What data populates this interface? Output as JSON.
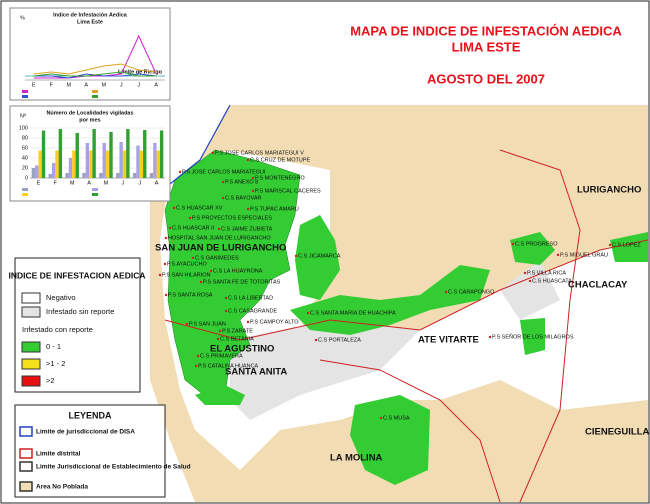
{
  "header": {
    "title_line1": "MAPA DE INDICE DE INFESTACIÓN AEDICA",
    "title_line2": "LIMA ESTE",
    "date": "AGOSTO DEL 2007"
  },
  "insets": [
    {
      "type": "line",
      "title_line1": "Indice de Infestación Aedica",
      "title_line2": "Lima Este",
      "y_label": "%",
      "annotation": "Limite de Riesgo",
      "categories": [
        "E",
        "F",
        "M",
        "A",
        "M",
        "J",
        "J",
        "A"
      ],
      "ylim": [
        0,
        25
      ],
      "series": [
        {
          "color": "#d020d0",
          "values": [
            1,
            1,
            1,
            2,
            2,
            3,
            22,
            3
          ]
        },
        {
          "color": "#e0a020",
          "values": [
            3,
            4,
            3,
            5,
            7,
            8,
            5,
            4
          ]
        },
        {
          "color": "#3050d0",
          "values": [
            2,
            2,
            1,
            3,
            2,
            2,
            3,
            2
          ]
        },
        {
          "color": "#30a030",
          "values": [
            2,
            3,
            2,
            2,
            3,
            4,
            2,
            2
          ]
        }
      ],
      "risk_level": 2
    },
    {
      "type": "bar",
      "title_line1": "Número de Localidades vigiladas",
      "title_line2": "por mes",
      "y_label": "Nº",
      "categories": [
        "E",
        "F",
        "M",
        "A",
        "M",
        "J",
        "J",
        "A"
      ],
      "ylim": [
        0,
        100
      ],
      "yticks": [
        0,
        20,
        40,
        60,
        80,
        100
      ],
      "series": [
        {
          "color": "#9aa0c0",
          "values": [
            20,
            8,
            10,
            10,
            10,
            10,
            10,
            10
          ]
        },
        {
          "color": "#a9a0e8",
          "values": [
            25,
            30,
            40,
            70,
            70,
            72,
            65,
            70
          ]
        },
        {
          "color": "#f5d020",
          "values": [
            55,
            55,
            55,
            55,
            55,
            55,
            55,
            55
          ]
        },
        {
          "color": "#30a030",
          "values": [
            95,
            98,
            90,
            98,
            92,
            98,
            96,
            95
          ]
        }
      ]
    }
  ],
  "districts": [
    "SAN JUAN DE LURIGANCHO",
    "EL AGUSTINO",
    "SANTA ANITA",
    "ATE VITARTE",
    "LA MOLINA",
    "LURIGANCHO",
    "CHACLACAY",
    "CIENEGUILLA"
  ],
  "health_centers": [
    "P.S JOSE CARLOS MARIATEGUI V",
    "C.S CRUZ DE MOTUPE",
    "P.S JOSE CARLOS MARIATEGUI",
    "P.S MONTENEGRO",
    "P.S ANEXO 8",
    "P.S MARISCAL CACERES",
    "C.S BAYOVAR",
    "C.S HUASCAR XV",
    "P.S TUPAC AMARU",
    "P.S PROYECTOS ESPECIALES",
    "C.S HUASCAR II",
    "C.S JAIME ZUBIETA",
    "HOSPITAL SAN JUAN DE LURIGANCHO",
    "C.S GANIMEDES",
    "P.S AYACUCHO",
    "C.S LA HUAYRONA",
    "P.S SAN HILARION",
    "P.S SANTA FE DE TOTORITAS",
    "P.S SANTA ROSA",
    "C.S LA LIBERTAD",
    "C.S CASAGRANDE",
    "P.S SAN JUAN",
    "P.S CAMPOY ALTO",
    "P.S ZARATE",
    "C.S BETANIA",
    "C.S PRIMAVERA",
    "P.S CATALINA HUANCA",
    "C.S JICAMARCA",
    "C.S SANTA MARIA DE HUACHIPA",
    "C.S CARAPONGO",
    "C.S PORTALEZA",
    "P.S SEÑOR DE LOS MILAGROS",
    "C.S PROGRESO",
    "P.S MIGUEL GRAU",
    "P.S VILLA RICA",
    "C.S HUASCATA",
    "C.S MUSA",
    "C.S LOPEZ"
  ],
  "legend": {
    "title": "INDICE DE INFESTACION AEDICA",
    "items": [
      "Negativo",
      "Infestado sin reporte",
      "Infestado con reporte",
      "0 - 1",
      ">1 - 2",
      ">2"
    ]
  },
  "key": {
    "title": "LEYENDA",
    "items": [
      "Limite de jurisdiccional de DISA",
      "Limite distrital",
      "Limite Jurisdiccional de Establecimiento de Salud",
      "Area No Poblada"
    ]
  }
}
